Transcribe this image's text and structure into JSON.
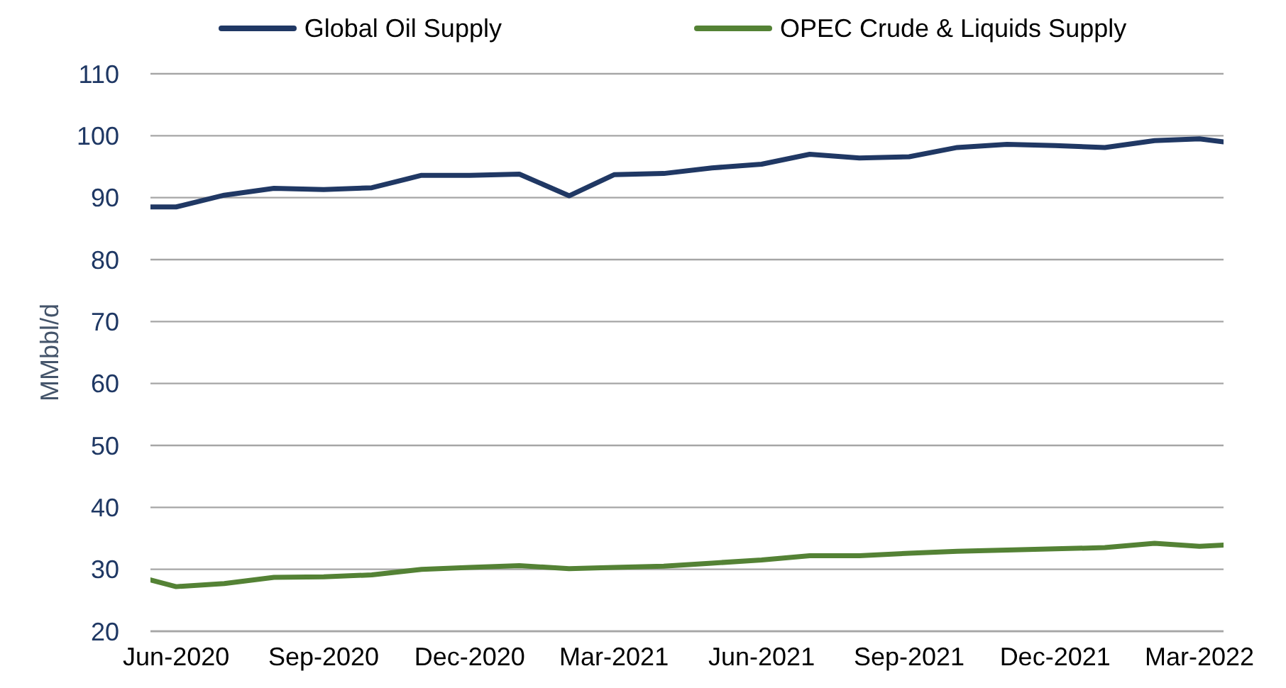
{
  "chart_data": {
    "type": "line",
    "ylabel": "MMbbl/d",
    "x": [
      "2020-05-16",
      "2020-06",
      "2020-07",
      "2020-08",
      "2020-09",
      "2020-10",
      "2020-11",
      "2020-12",
      "2021-01",
      "2021-02",
      "2021-03",
      "2021-04",
      "2021-05",
      "2021-06",
      "2021-07",
      "2021-08",
      "2021-09",
      "2021-10",
      "2021-11",
      "2021-12",
      "2022-01",
      "2022-02",
      "2022-03",
      "2022-03-16"
    ],
    "series": [
      {
        "name": "Global Oil Supply",
        "color": "#203864",
        "values": [
          88.5,
          88.5,
          90.4,
          91.5,
          91.3,
          91.6,
          93.6,
          93.6,
          93.8,
          90.3,
          93.7,
          93.9,
          94.8,
          95.4,
          97.0,
          96.4,
          96.6,
          98.1,
          98.6,
          98.4,
          98.1,
          99.2,
          99.5,
          99.0
        ]
      },
      {
        "name": "OPEC Crude & Liquids Supply",
        "color": "#548235",
        "values": [
          28.3,
          27.2,
          27.7,
          28.7,
          28.8,
          29.1,
          30.0,
          30.3,
          30.6,
          30.1,
          30.3,
          30.5,
          31.0,
          31.5,
          32.2,
          32.2,
          32.6,
          32.9,
          33.1,
          33.3,
          33.5,
          34.2,
          33.7,
          33.9
        ]
      }
    ],
    "xlim": [
      "2020-05-16",
      "2022-03-16"
    ],
    "xticks": [
      {
        "value": "2020-06",
        "label": "Jun-2020"
      },
      {
        "value": "2020-09",
        "label": "Sep-2020"
      },
      {
        "value": "2020-12",
        "label": "Dec-2020"
      },
      {
        "value": "2021-03",
        "label": "Mar-2021"
      },
      {
        "value": "2021-06",
        "label": "Jun-2021"
      },
      {
        "value": "2021-09",
        "label": "Sep-2021"
      },
      {
        "value": "2021-12",
        "label": "Dec-2021"
      },
      {
        "value": "2022-03",
        "label": "Mar-2022"
      }
    ],
    "ylim": [
      20,
      110
    ],
    "yticks": [
      20,
      30,
      40,
      50,
      60,
      70,
      80,
      90,
      100,
      110
    ],
    "grid": "y",
    "legend": "top"
  }
}
